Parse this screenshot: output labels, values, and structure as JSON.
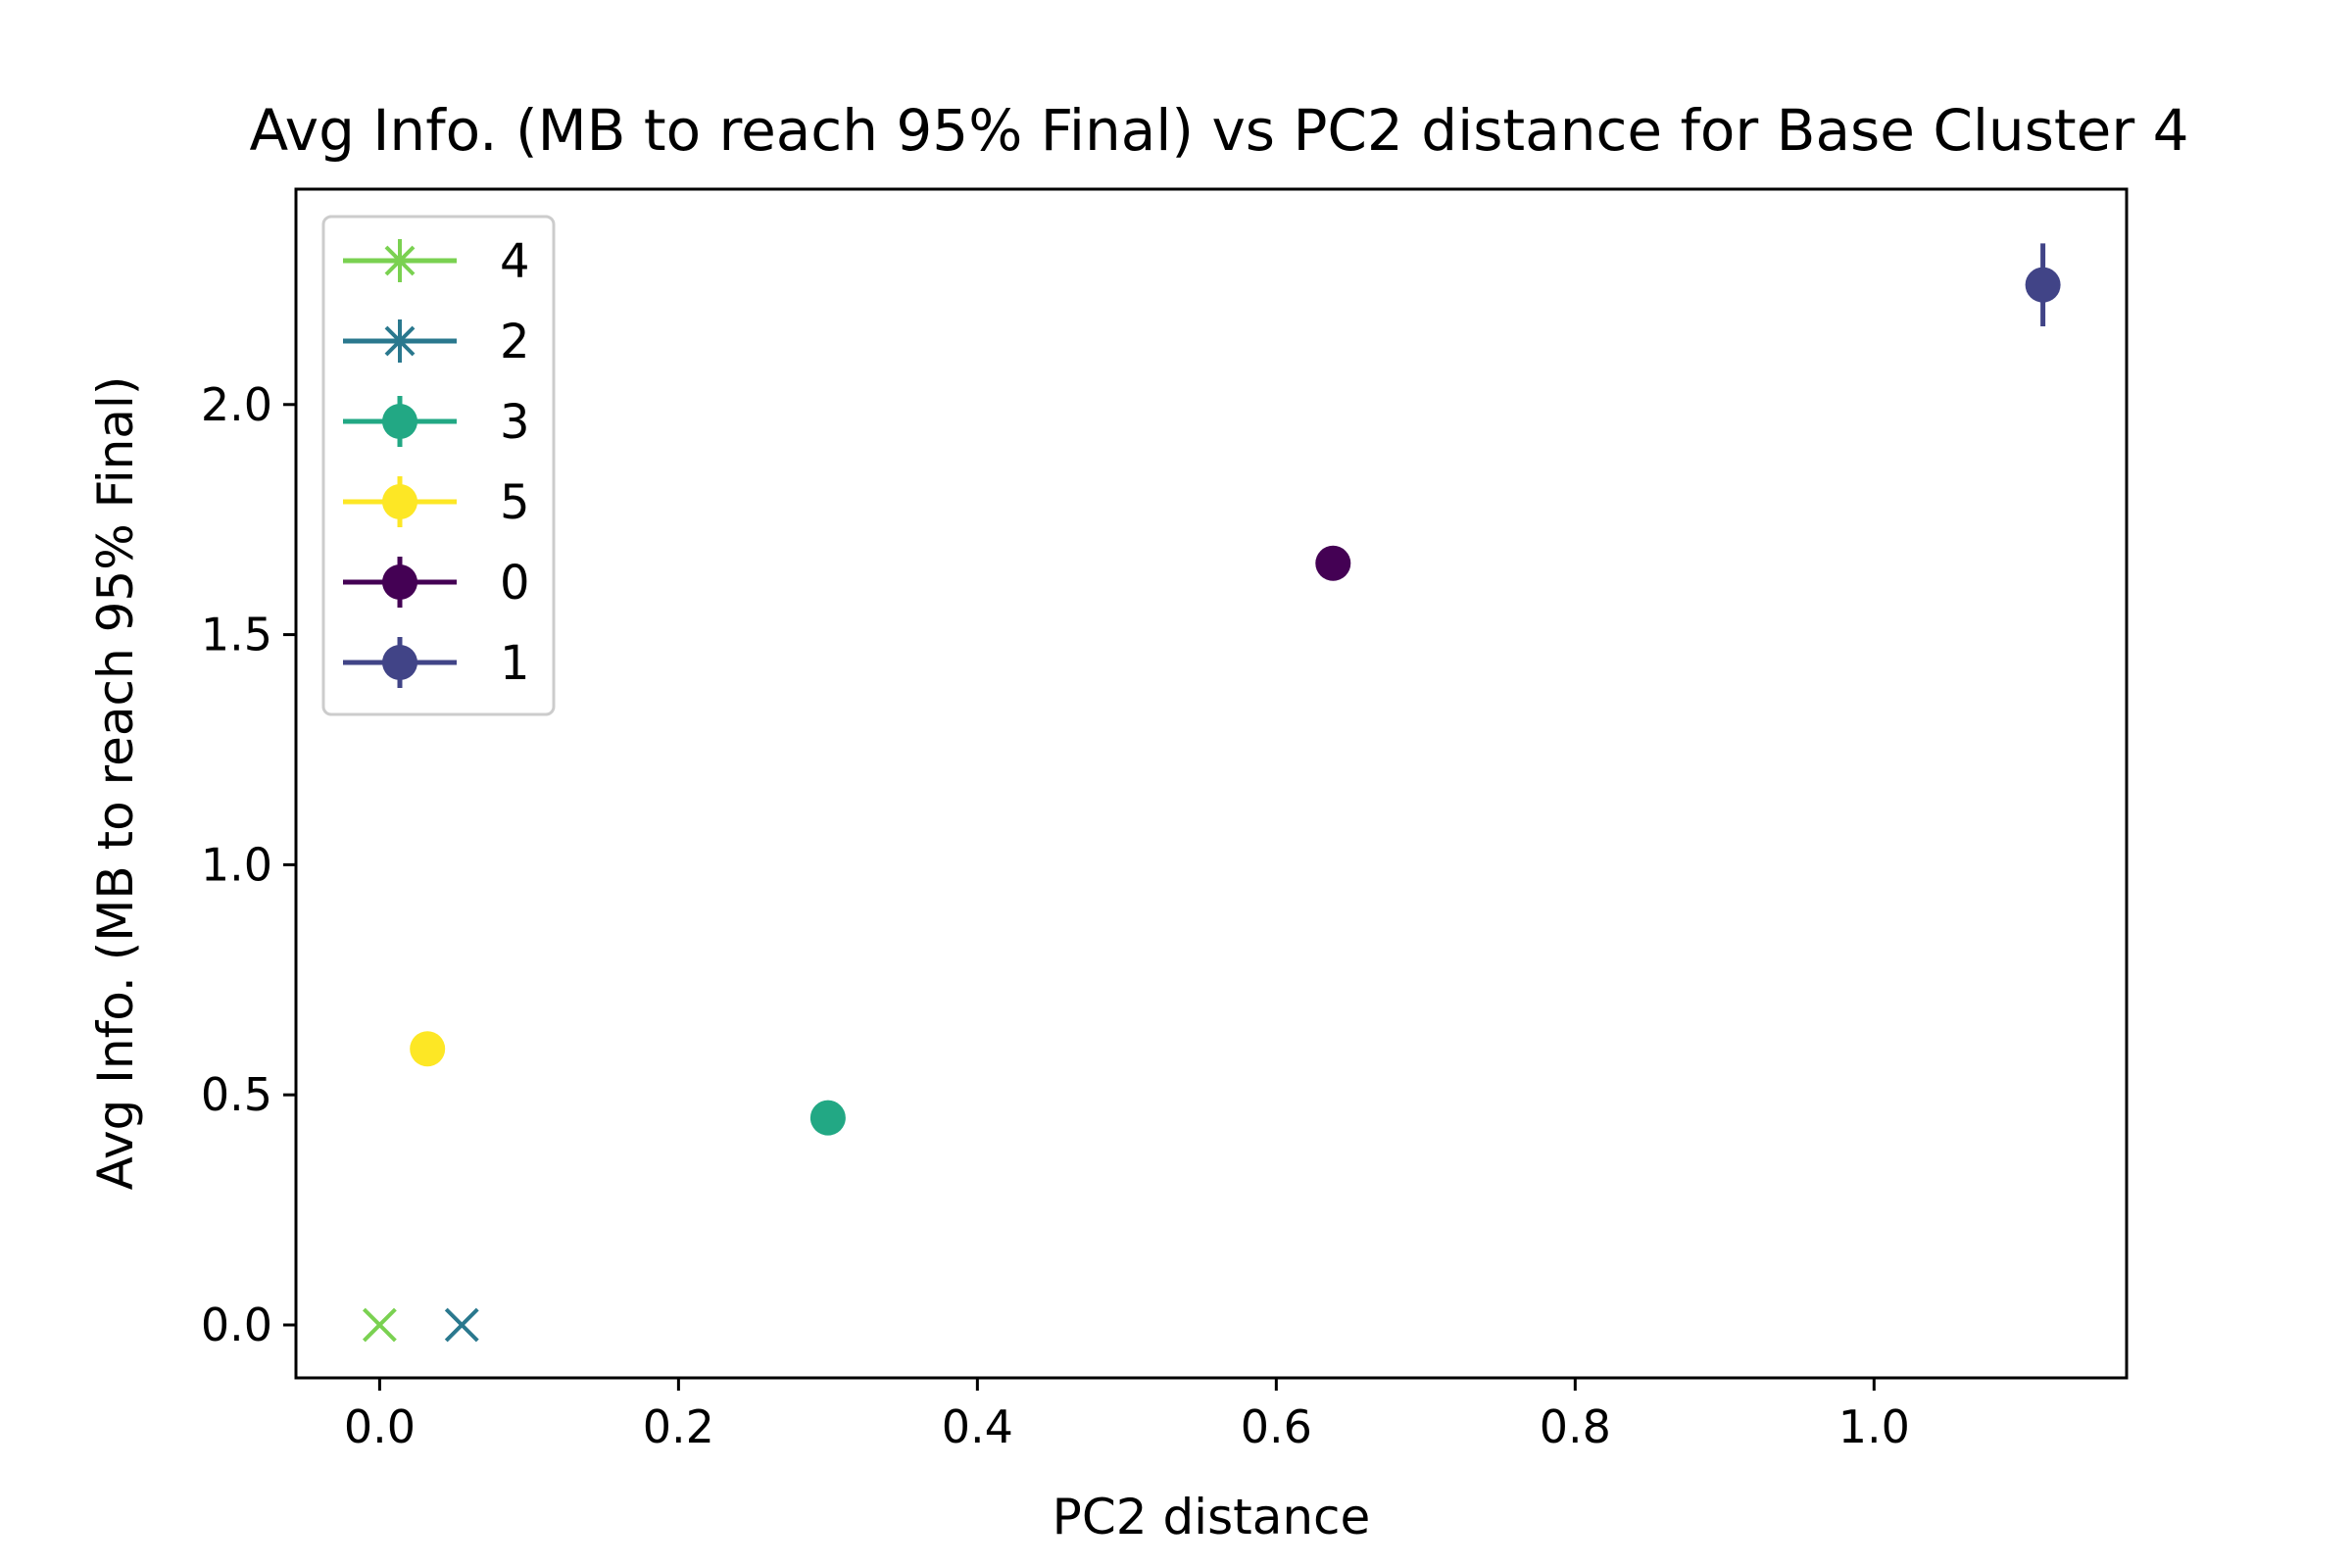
{
  "chart_data": {
    "type": "scatter",
    "title": "Avg Info. (MB to reach 95% Final) vs PC2 distance for Base Cluster 4",
    "xlabel": "PC2 distance",
    "ylabel": "Avg Info. (MB to reach 95% Final)",
    "xlim": [
      -0.056,
      1.169
    ],
    "ylim": [
      -0.115,
      2.468
    ],
    "x_ticks": [
      0.0,
      0.2,
      0.4,
      0.6,
      0.8,
      1.0
    ],
    "x_tick_labels": [
      "0.0",
      "0.2",
      "0.4",
      "0.6",
      "0.8",
      "1.0"
    ],
    "y_ticks": [
      0.0,
      0.5,
      1.0,
      1.5,
      2.0
    ],
    "y_tick_labels": [
      "0.0",
      "0.5",
      "1.0",
      "1.5",
      "2.0"
    ],
    "grid": false,
    "legend_position": "top-left",
    "series": [
      {
        "name": "4",
        "color": "#7ad151",
        "marker": "x",
        "x": 0.0,
        "y": 0.0,
        "yerr": 0.0
      },
      {
        "name": "2",
        "color": "#2a788e",
        "marker": "x",
        "x": 0.055,
        "y": 0.0,
        "yerr": 0.0
      },
      {
        "name": "3",
        "color": "#22a884",
        "marker": "o",
        "x": 0.3,
        "y": 0.45,
        "yerr": 0.0
      },
      {
        "name": "5",
        "color": "#fde725",
        "marker": "o",
        "x": 0.032,
        "y": 0.6,
        "yerr": 0.0
      },
      {
        "name": "0",
        "color": "#440154",
        "marker": "o",
        "x": 0.638,
        "y": 1.655,
        "yerr": 0.0
      },
      {
        "name": "1",
        "color": "#414487",
        "marker": "o",
        "x": 1.113,
        "y": 2.26,
        "yerr": 0.09
      }
    ]
  }
}
